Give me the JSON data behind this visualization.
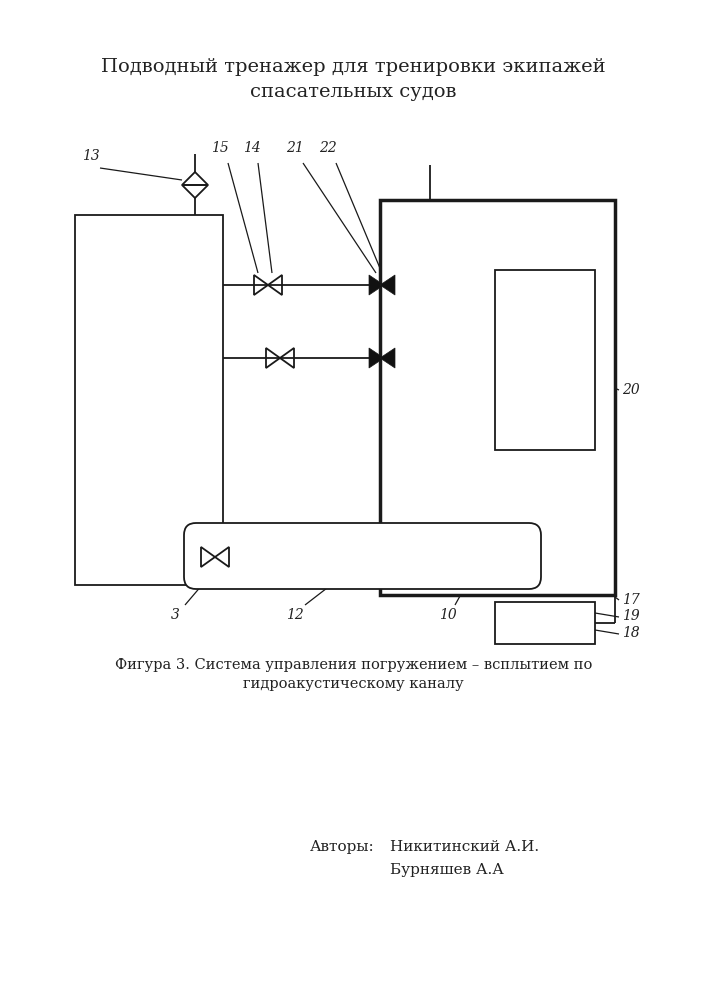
{
  "title_line1": "Подводный тренажер для тренировки экипажей",
  "title_line2": "спасательных судов",
  "caption_line1": "Фигура 3. Система управления погружением – всплытием по",
  "caption_line2": "гидроакустическому каналу",
  "author_label": "Авторы:",
  "author1": "Никитинский А.И.",
  "author2": "Бурняшев А.А",
  "bg_color": "#ffffff",
  "line_color": "#1a1a1a",
  "label_color": "#222222"
}
